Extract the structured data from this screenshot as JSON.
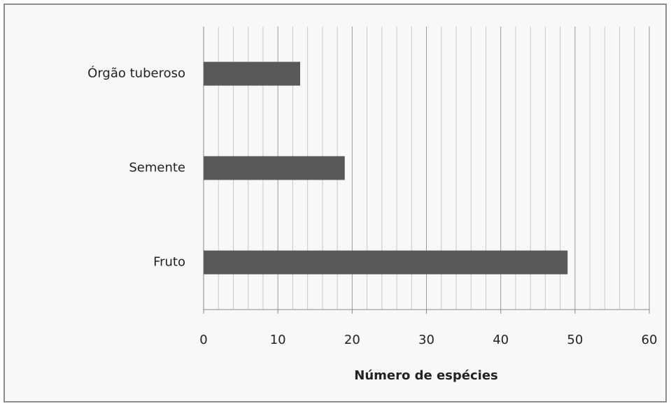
{
  "chart_data": {
    "type": "bar",
    "orientation": "horizontal",
    "categories": [
      "Fruto",
      "Semente",
      "Órgão tuberoso"
    ],
    "values": [
      49,
      19,
      13
    ],
    "color": "#595959",
    "xlabel": "Número de espécies",
    "xlim": [
      0,
      60
    ],
    "xticks": [
      0,
      10,
      20,
      30,
      40,
      50,
      60
    ],
    "x_minor_ticks": [
      2,
      4,
      6,
      8,
      12,
      14,
      16,
      18,
      22,
      24,
      26,
      28,
      32,
      34,
      36,
      38,
      42,
      44,
      46,
      48,
      52,
      54,
      56,
      58
    ],
    "grid": true
  }
}
